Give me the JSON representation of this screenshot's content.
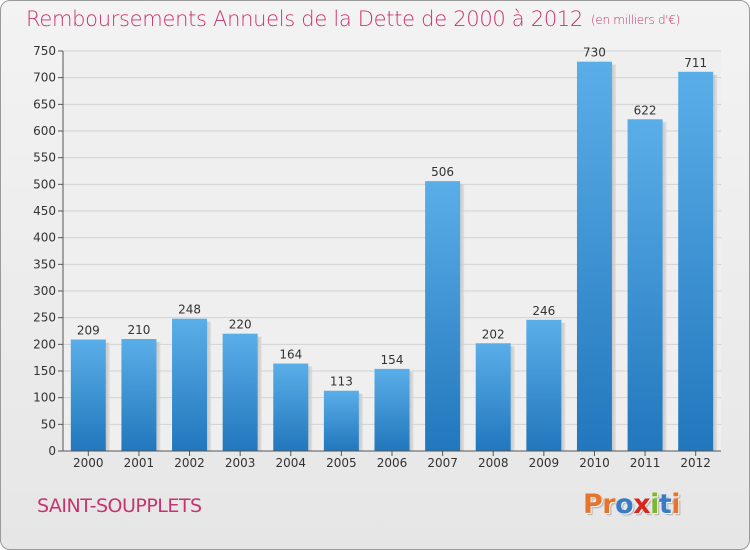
{
  "header": {
    "title": "Remboursements Annuels de la Dette de 2000 à 2012",
    "subtitle": "(en milliers d'€)"
  },
  "footer": {
    "city": "SAINT-SOUPPLETS",
    "logo": "Proxiti",
    "logo_colors": [
      "#e8742c",
      "#e8742c",
      "#3a7cc4",
      "#d9261c",
      "#7cb82f",
      "#3a7cc4",
      "#e8742c"
    ]
  },
  "colors": {
    "accent": "#c8336f",
    "bar_top": "#5aaee8",
    "bar_bottom": "#2277bd",
    "grid": "#d2d2d2",
    "axis": "#555555"
  },
  "chart_data": {
    "type": "bar",
    "title": "Remboursements Annuels de la Dette de 2000 à 2012",
    "subtitle": "(en milliers d'€)",
    "xlabel": "",
    "ylabel": "",
    "categories": [
      "2000",
      "2001",
      "2002",
      "2003",
      "2004",
      "2005",
      "2006",
      "2007",
      "2008",
      "2009",
      "2010",
      "2011",
      "2012"
    ],
    "values": [
      209,
      210,
      248,
      220,
      164,
      113,
      154,
      506,
      202,
      246,
      730,
      622,
      711
    ],
    "ylim": [
      0,
      750
    ],
    "yticks": [
      0,
      50,
      100,
      150,
      200,
      250,
      300,
      350,
      400,
      450,
      500,
      550,
      600,
      650,
      700,
      750
    ],
    "grid": true,
    "data_labels": true
  }
}
